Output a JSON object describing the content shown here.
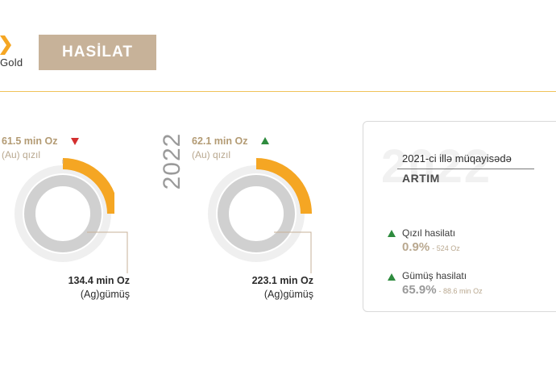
{
  "brand": {
    "logo_text": "Gold",
    "accent_color": "#f5a623",
    "title_bg": "#c7b299"
  },
  "header": {
    "title": "HASİLAT"
  },
  "left_panel": {
    "gold_value": "61.5 min Oz",
    "gold_sub": "(Au) qızıl",
    "gold_trend": "down",
    "silver_value": "134.4 min Oz",
    "silver_sub": "(Ag)gümüş"
  },
  "right_panel": {
    "year": "2022",
    "gold_value": "62.1 min Oz",
    "gold_sub": "(Au) qızıl",
    "gold_trend": "up",
    "silver_value": "223.1 min Oz",
    "silver_sub": "(Ag)gümüş"
  },
  "comparison": {
    "watermark": "2022",
    "title": "2021-ci illə müqayisədə",
    "word": "ARTIM",
    "items": [
      {
        "label": "Qızıl hasilatı",
        "percent": "0.9%",
        "detail": "- 524 Oz",
        "trend": "up"
      },
      {
        "label": "Gümüş hasilatı",
        "percent": "65.9%",
        "detail": "- 88.6 min Oz",
        "trend": "up"
      }
    ]
  }
}
